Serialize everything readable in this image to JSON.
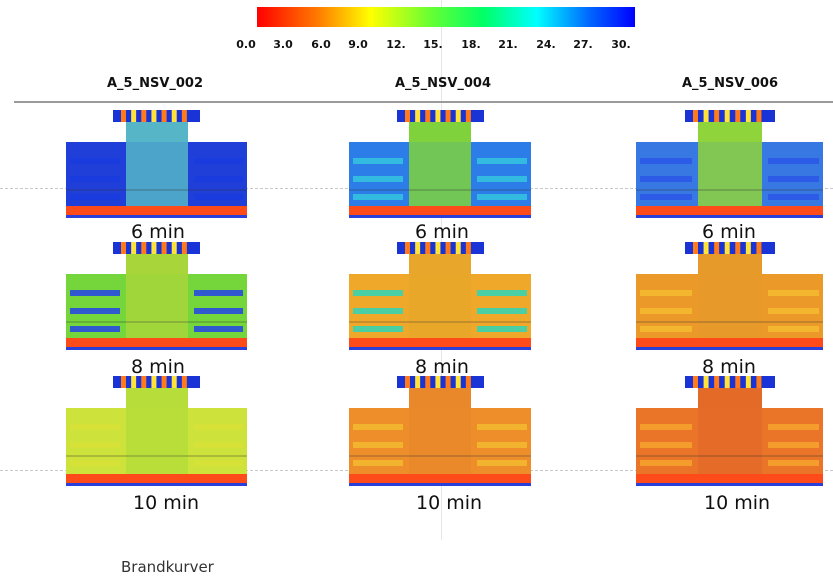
{
  "colorbar": {
    "tick_labels": [
      "0.0",
      "3.0",
      "6.0",
      "9.0",
      "12.",
      "15.",
      "18.",
      "21.",
      "24.",
      "27.",
      "30."
    ]
  },
  "columns": [
    {
      "title": "A_5_NSV_002"
    },
    {
      "title": "A_5_NSV_004"
    },
    {
      "title": "A_5_NSV_006"
    }
  ],
  "rows": [
    {
      "label": "6 min"
    },
    {
      "label": "8 min"
    },
    {
      "label": "10 min"
    }
  ],
  "caption": "Brandkurver"
}
